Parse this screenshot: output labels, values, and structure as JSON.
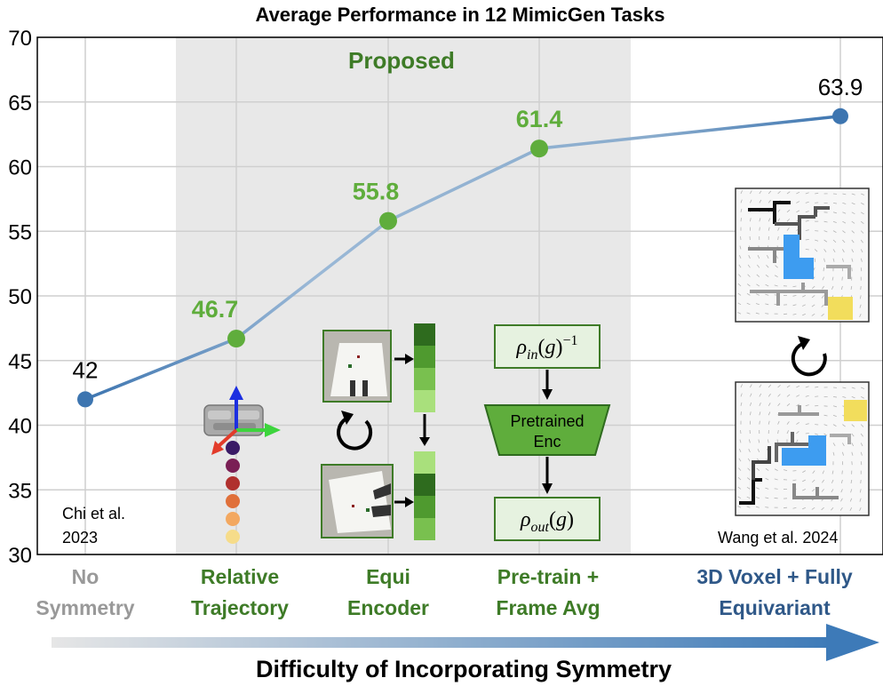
{
  "chart_data": {
    "type": "line",
    "title": "Average Performance in 12 MimicGen Tasks",
    "categories": [
      "No Symmetry",
      "Relative Trajectory",
      "Equi Encoder",
      "Pre-train + Frame Avg",
      "3D Voxel + Fully Equivariant"
    ],
    "category_labels": [
      [
        "No",
        "Symmetry"
      ],
      [
        "Relative",
        "Trajectory"
      ],
      [
        "Equi",
        "Encoder"
      ],
      [
        "Pre-train +",
        "Frame Avg"
      ],
      [
        "3D Voxel + Fully",
        "Equivariant"
      ]
    ],
    "values": [
      42,
      46.7,
      55.8,
      61.4,
      63.9
    ],
    "value_labels": [
      "42",
      "46.7",
      "55.8",
      "61.4",
      "63.9"
    ],
    "proposed": [
      false,
      true,
      true,
      true,
      false
    ],
    "ylim": [
      30,
      70
    ],
    "yticks": [
      30,
      35,
      40,
      45,
      50,
      55,
      60,
      65,
      70
    ],
    "grid": true,
    "shaded_region_label": "Proposed",
    "xlabel": "Difficulty of Incorporating Symmetry",
    "colors": {
      "baseline_point": "#3d75b0",
      "proposed_point": "#5fad3c",
      "line": "#8aaccd",
      "shade": "#e8e8e8",
      "label_gray": "#999999",
      "label_green": "#3e7b27",
      "label_blue": "#2f5888"
    }
  },
  "annotations": {
    "chi": [
      "Chi et al.",
      "2023"
    ],
    "wang": "Wang et al. 2024",
    "rho_in": "ρin(g)−1",
    "enc": [
      "Pretrained",
      "Enc"
    ],
    "rho_out": "ρout(g)"
  }
}
